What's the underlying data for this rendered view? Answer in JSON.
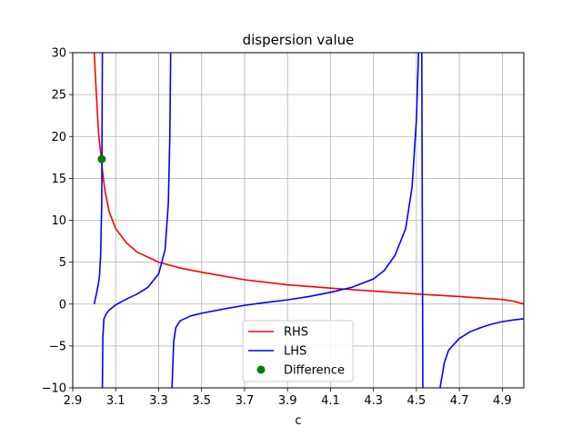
{
  "chart_data": {
    "type": "line",
    "title": "dispersion value",
    "xlabel": "c",
    "ylabel": "",
    "xlim": [
      2.9,
      5.0
    ],
    "ylim": [
      -10,
      30
    ],
    "xticks": [
      2.9,
      3.1,
      3.3,
      3.5,
      3.7,
      3.9,
      4.1,
      4.3,
      4.5,
      4.7,
      4.9
    ],
    "xtick_labels": [
      "2.9",
      "3.1",
      "3.3",
      "3.5",
      "3.7",
      "3.9",
      "4.1",
      "4.3",
      "4.5",
      "4.7",
      "4.9"
    ],
    "yticks": [
      -10,
      -5,
      0,
      5,
      10,
      15,
      20,
      25,
      30
    ],
    "ytick_labels": [
      "−10",
      "−5",
      "0",
      "5",
      "10",
      "15",
      "20",
      "25",
      "30"
    ],
    "grid": true,
    "legend_position": "bottom-center",
    "series": [
      {
        "name": "RHS",
        "color": "#ff0000",
        "kind": "line",
        "x": [
          3.0,
          3.01,
          3.02,
          3.03,
          3.04,
          3.05,
          3.07,
          3.1,
          3.15,
          3.2,
          3.3,
          3.4,
          3.5,
          3.7,
          3.9,
          4.1,
          4.3,
          4.5,
          4.7,
          4.9,
          4.95,
          5.0
        ],
        "y": [
          30,
          25,
          20.5,
          18,
          15.5,
          13.5,
          11,
          9,
          7.3,
          6.2,
          5,
          4.3,
          3.8,
          2.9,
          2.3,
          1.9,
          1.55,
          1.2,
          0.9,
          0.55,
          0.35,
          0
        ]
      },
      {
        "name": "LHS",
        "color": "#0000ff",
        "kind": "line",
        "segments": [
          {
            "x": [
              3.0,
              3.01,
              3.02,
              3.025,
              3.03,
              3.035,
              3.038
            ],
            "y": [
              0,
              1.2,
              2.5,
              3.5,
              6,
              12,
              30
            ]
          },
          {
            "x": [
              3.038,
              3.04,
              3.045,
              3.055,
              3.07,
              3.1,
              3.15,
              3.2,
              3.25,
              3.3,
              3.33,
              3.345,
              3.352,
              3.356
            ],
            "y": [
              -10,
              -4,
              -1.8,
              -1.2,
              -0.7,
              -0.1,
              0.6,
              1.2,
              2.0,
              3.6,
              6.5,
              12,
              20,
              30
            ]
          },
          {
            "x": [
              3.362,
              3.37,
              3.38,
              3.4,
              3.45,
              3.5,
              3.6,
              3.7,
              3.8,
              3.9,
              4.0,
              4.1,
              4.2,
              4.3,
              4.35,
              4.4,
              4.45,
              4.48,
              4.5,
              4.51
            ],
            "y": [
              -10,
              -4.5,
              -2.8,
              -2,
              -1.4,
              -1.1,
              -0.6,
              -0.15,
              0.2,
              0.5,
              0.9,
              1.4,
              2.0,
              3.0,
              4.0,
              5.8,
              9,
              14,
              22,
              30
            ]
          },
          {
            "x": [
              4.525,
              4.53
            ],
            "y": [
              30,
              -10
            ]
          },
          {
            "x": [
              4.61,
              4.63,
              4.65,
              4.7,
              4.75,
              4.8,
              4.85,
              4.9,
              4.95,
              5.0
            ],
            "y": [
              -10,
              -7,
              -5.5,
              -4.1,
              -3.3,
              -2.8,
              -2.4,
              -2.1,
              -1.9,
              -1.75
            ]
          }
        ]
      },
      {
        "name": "Difference",
        "color": "#008000",
        "kind": "scatter",
        "x": [
          3.035
        ],
        "y": [
          17.3
        ]
      }
    ]
  }
}
